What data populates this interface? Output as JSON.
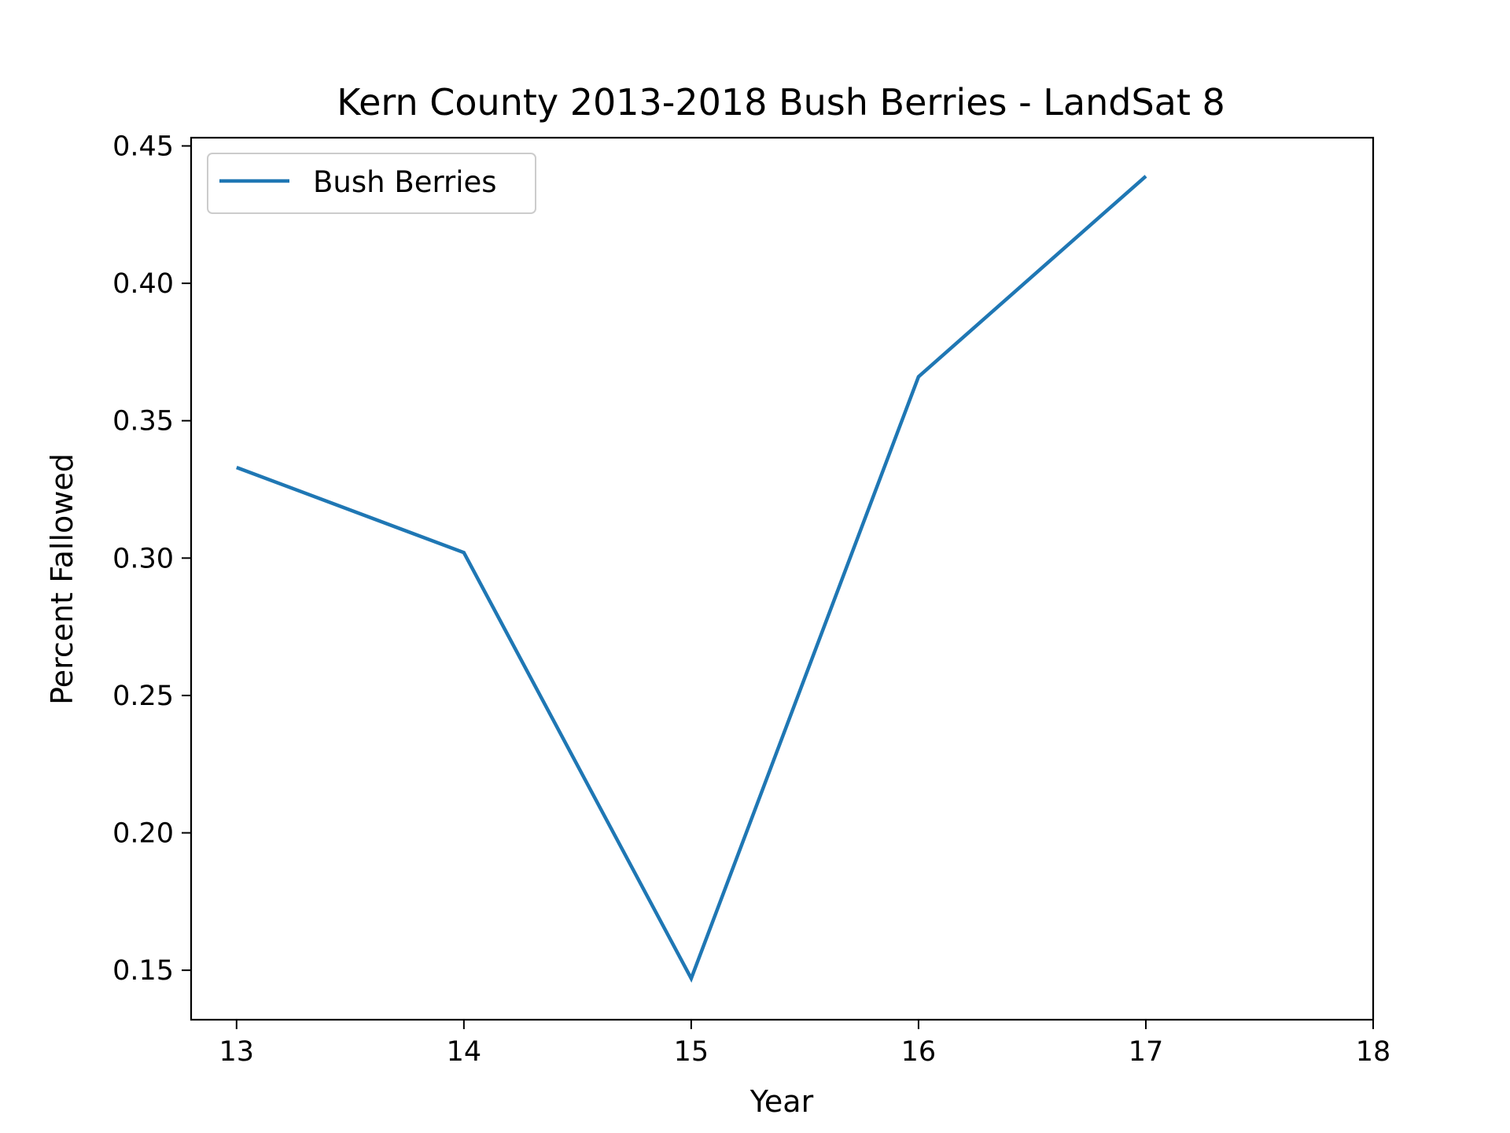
{
  "chart_data": {
    "type": "line",
    "title": "Kern County 2013-2018 Bush Berries - LandSat 8",
    "xlabel": "Year",
    "ylabel": "Percent Fallowed",
    "x_ticks": [
      "13",
      "14",
      "15",
      "16",
      "17",
      "18"
    ],
    "y_ticks": [
      "0.15",
      "0.20",
      "0.25",
      "0.30",
      "0.35",
      "0.40",
      "0.45"
    ],
    "xlim": [
      12.8,
      18
    ],
    "ylim": [
      0.132,
      0.453
    ],
    "grid": false,
    "legend_position": "upper-left",
    "series": [
      {
        "name": "Bush Berries",
        "color": "#1f77b4",
        "x": [
          13,
          14,
          15,
          16,
          17
        ],
        "y": [
          0.333,
          0.302,
          0.147,
          0.366,
          0.439
        ]
      }
    ]
  }
}
